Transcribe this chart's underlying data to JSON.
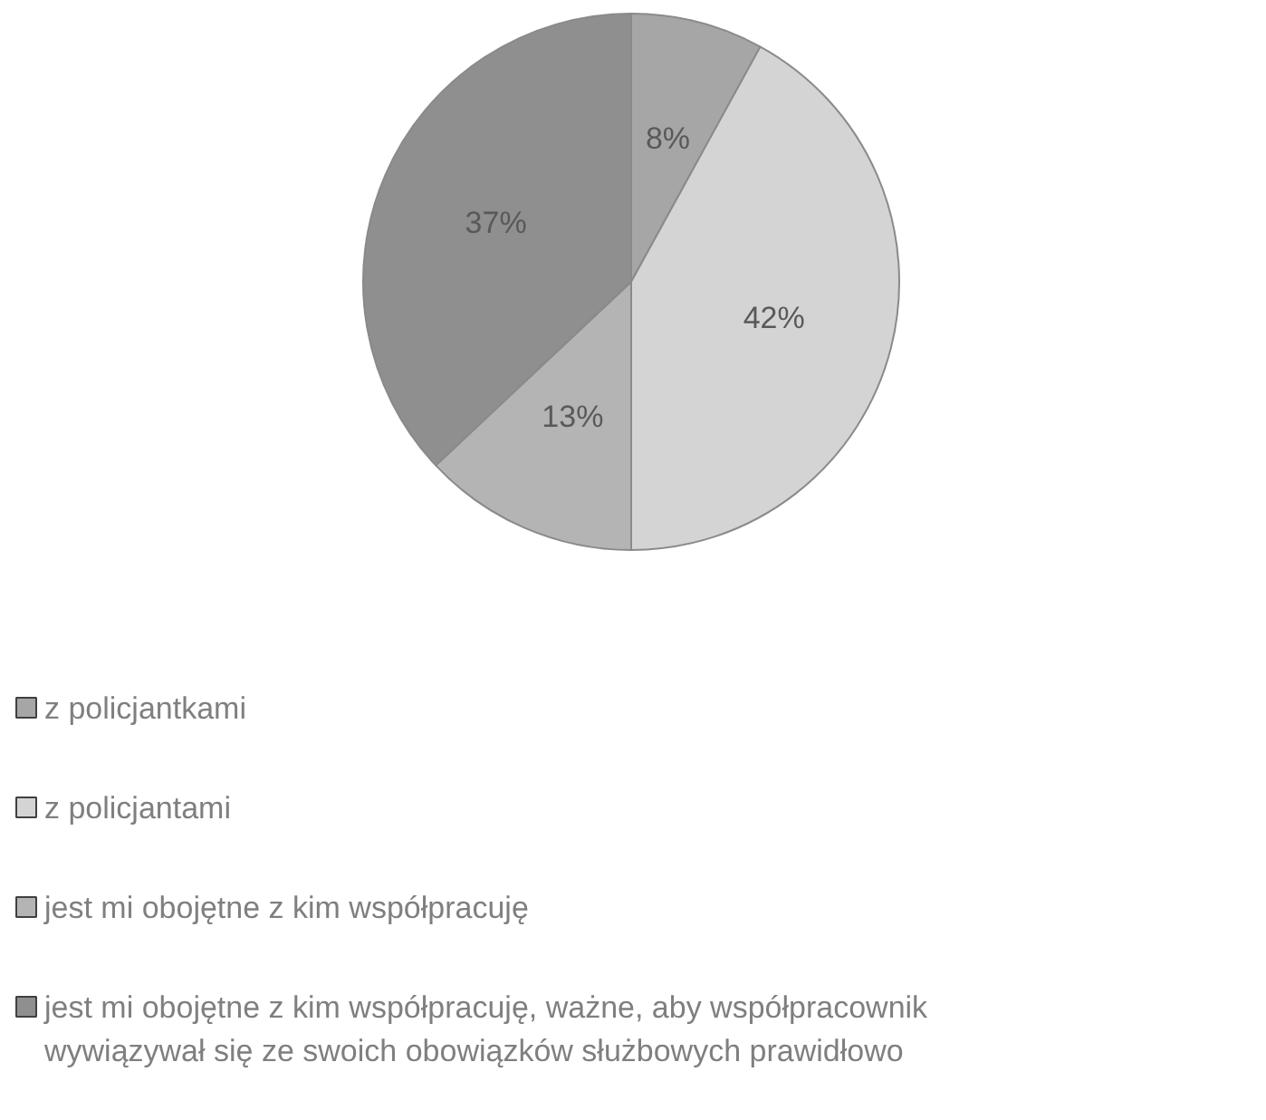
{
  "chart_data": {
    "type": "pie",
    "categories": [
      "z policjantkami",
      "z policjantami",
      "jest mi obojętne z kim współpracuję",
      "jest mi obojętne z kim współpracuję, ważne, aby współpracownik wywiązywał się ze swoich obowiązków służbowych prawidłowo"
    ],
    "values": [
      8,
      42,
      13,
      37
    ],
    "colors": [
      "#a6a6a6",
      "#d4d4d4",
      "#b4b4b4",
      "#8f8f8f"
    ],
    "value_labels": [
      "8%",
      "42%",
      "13%",
      "37%"
    ],
    "legend": "bottom"
  }
}
